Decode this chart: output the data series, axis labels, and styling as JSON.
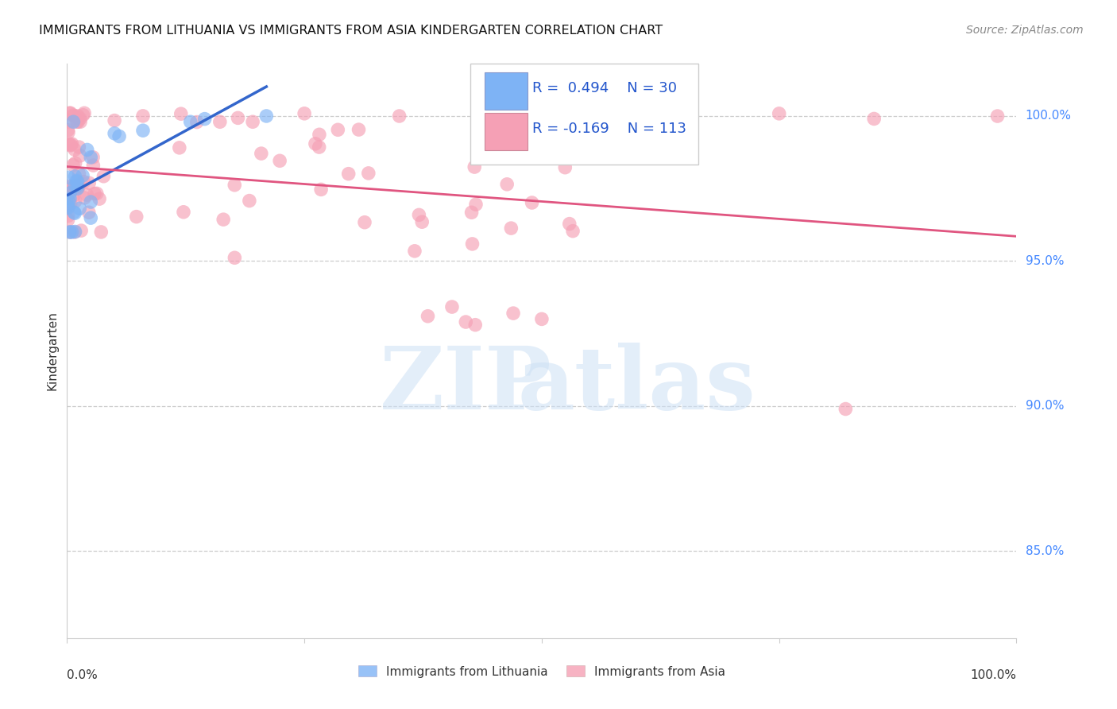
{
  "title": "IMMIGRANTS FROM LITHUANIA VS IMMIGRANTS FROM ASIA KINDERGARTEN CORRELATION CHART",
  "source": "Source: ZipAtlas.com",
  "ylabel": "Kindergarten",
  "y_tick_labels": [
    "100.0%",
    "95.0%",
    "90.0%",
    "85.0%"
  ],
  "y_tick_values": [
    1.0,
    0.95,
    0.9,
    0.85
  ],
  "xlim": [
    0.0,
    1.0
  ],
  "ylim": [
    0.82,
    1.018
  ],
  "R_blue": 0.494,
  "N_blue": 30,
  "R_pink": -0.169,
  "N_pink": 113,
  "blue_color": "#7eb3f5",
  "pink_color": "#f5a0b5",
  "blue_line_color": "#3366cc",
  "pink_line_color": "#e05580",
  "watermark_zip": "ZIP",
  "watermark_atlas": "atlas",
  "background_color": "#ffffff"
}
